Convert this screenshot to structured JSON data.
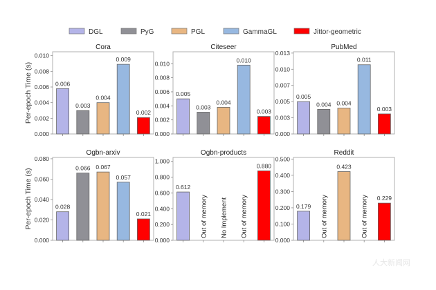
{
  "legend": {
    "items": [
      {
        "name": "DGL",
        "color": "#b4b4e8"
      },
      {
        "name": "PyG",
        "color": "#909096"
      },
      {
        "name": "PGL",
        "color": "#e8b682"
      },
      {
        "name": "GammaGL",
        "color": "#97b8e0"
      },
      {
        "name": "Jittor-geometric",
        "color": "#ff0000"
      }
    ]
  },
  "watermark": "人大新闻网",
  "chart_data": [
    {
      "type": "bar",
      "title": "Cora",
      "ylabel": "Per-epoch Time (s)",
      "ylim": [
        0,
        0.0105
      ],
      "yticks": [
        0,
        0.002,
        0.004,
        0.006,
        0.008,
        0.01
      ],
      "ytick_labels": [
        "0.000",
        "0.002",
        "0.004",
        "0.006",
        "0.008",
        "0.010"
      ],
      "categories": [
        "DGL",
        "PyG",
        "PGL",
        "GammaGL",
        "Jittor-geometric"
      ],
      "values": [
        0.0058,
        0.003,
        0.004,
        0.0089,
        0.0021
      ],
      "labels": [
        "0.006",
        "0.003",
        "0.004",
        "0.009",
        "0.002"
      ]
    },
    {
      "type": "bar",
      "title": "Citeseer",
      "ylabel": "",
      "ylim": [
        0,
        0.0117
      ],
      "yticks": [
        0,
        0.002,
        0.004,
        0.006,
        0.008,
        0.01
      ],
      "ytick_labels": [
        "0.000",
        "0.002",
        "0.004",
        "0.006",
        "0.008",
        "0.010"
      ],
      "categories": [
        "DGL",
        "PyG",
        "PGL",
        "GammaGL",
        "Jittor-geometric"
      ],
      "values": [
        0.005,
        0.0031,
        0.0038,
        0.0098,
        0.0025
      ],
      "labels": [
        "0.005",
        "0.003",
        "0.004",
        "0.010",
        "0.003"
      ]
    },
    {
      "type": "bar",
      "title": "PubMed",
      "ylabel": "",
      "ylim": [
        0,
        0.0127
      ],
      "yticks": [
        0,
        0.0025,
        0.005,
        0.0075,
        0.01,
        0.0125
      ],
      "ytick_labels": [
        "0.000",
        "0.003",
        "0.005",
        "0.007",
        "0.010",
        "0.013"
      ],
      "categories": [
        "DGL",
        "PyG",
        "PGL",
        "GammaGL",
        "Jittor-geometric"
      ],
      "values": [
        0.005,
        0.0038,
        0.004,
        0.0107,
        0.0031
      ],
      "labels": [
        "0.005",
        "0.004",
        "0.004",
        "0.011",
        "0.003"
      ]
    },
    {
      "type": "bar",
      "title": "Ogbn-arxiv",
      "ylabel": "Per-epoch Time (s)",
      "ylim": [
        0,
        0.0813
      ],
      "yticks": [
        0,
        0.02,
        0.04,
        0.06,
        0.08
      ],
      "ytick_labels": [
        "0.000",
        "0.020",
        "0.040",
        "0.060",
        "0.080"
      ],
      "categories": [
        "DGL",
        "PyG",
        "PGL",
        "GammaGL",
        "Jittor-geometric"
      ],
      "values": [
        0.028,
        0.066,
        0.067,
        0.057,
        0.021
      ],
      "labels": [
        "0.028",
        "0.066",
        "0.067",
        "0.057",
        "0.021"
      ]
    },
    {
      "type": "bar",
      "title": "Ogbn-products",
      "ylabel": "",
      "ylim": [
        0,
        1.05
      ],
      "yticks": [
        0,
        0.2,
        0.4,
        0.6,
        0.8,
        1.0
      ],
      "ytick_labels": [
        "0.000",
        "0.200",
        "0.400",
        "0.600",
        "0.800",
        "1.000"
      ],
      "categories": [
        "DGL",
        "PyG",
        "PGL",
        "GammaGL",
        "Jittor-geometric"
      ],
      "values": [
        0.612,
        null,
        null,
        null,
        0.88
      ],
      "labels": [
        "0.612",
        "Out of memory",
        "No Implement",
        "Out of memory",
        "0.880"
      ]
    },
    {
      "type": "bar",
      "title": "Reddit",
      "ylabel": "",
      "ylim": [
        0,
        0.51
      ],
      "yticks": [
        0,
        0.1,
        0.2,
        0.3,
        0.4,
        0.5
      ],
      "ytick_labels": [
        "0.000",
        "0.100",
        "0.200",
        "0.300",
        "0.400",
        "0.500"
      ],
      "categories": [
        "DGL",
        "PyG",
        "PGL",
        "GammaGL",
        "Jittor-geometric"
      ],
      "values": [
        0.179,
        null,
        0.423,
        null,
        0.229
      ],
      "labels": [
        "0.179",
        "Out of memory",
        "0.423",
        "Out of memory",
        "0.229"
      ]
    }
  ]
}
